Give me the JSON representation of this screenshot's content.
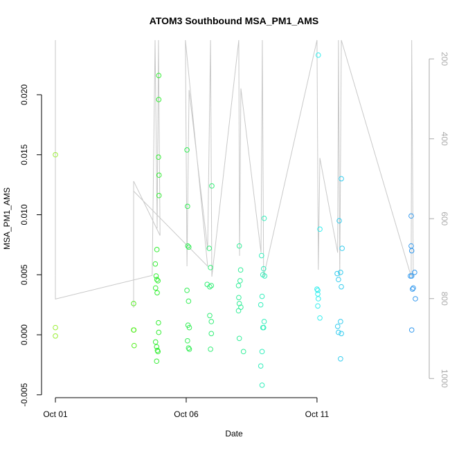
{
  "chart_data": {
    "type": "scatter",
    "title": "ATOM3 Southbound MSA_PM1_AMS",
    "x_label": "Date",
    "y_label": "MSA_PM1_AMS",
    "xlim": [
      -0.53,
      14.29
    ],
    "xticks": [
      {
        "value": 0,
        "label": "Oct 01"
      },
      {
        "value": 5,
        "label": "Oct 06"
      },
      {
        "value": 10,
        "label": "Oct 11"
      }
    ],
    "ylim": [
      -0.00524,
      0.02455
    ],
    "yticks": [
      -0.005,
      {
        "value": 0,
        "label": "0.000"
      },
      0.005,
      {
        "value": 0.01,
        "label": "0.010"
      },
      {
        "value": 0.015,
        "label": "0.015"
      },
      {
        "value": 0.02,
        "label": "0.020"
      }
    ],
    "y2lim": [
      1048,
      153
    ],
    "y2ticks": [
      200,
      400,
      600,
      800,
      1000
    ],
    "series": [
      {
        "color": "#99ee33",
        "x": [
          0,
          0,
          0
        ],
        "values": [
          0.015,
          0.0006,
          -0.0001
        ]
      },
      {
        "color": "#55ee22",
        "x": [
          2.99,
          2.99,
          3.0,
          3.01
        ],
        "values": [
          0.0026,
          0.0004,
          0.0004,
          -0.0009
        ]
      },
      {
        "color": "#33ee33",
        "x": [
          3.95,
          3.95,
          3.94,
          3.96,
          3.96,
          3.88,
          3.82,
          3.85,
          3.88,
          3.92,
          3.83,
          3.89,
          3.94,
          3.95,
          3.83,
          3.87,
          3.9,
          3.92,
          3.87
        ],
        "values": [
          0.0216,
          0.0196,
          0.0148,
          0.0133,
          0.0116,
          0.0071,
          0.0059,
          0.0049,
          0.0046,
          0.0045,
          0.0039,
          0.0035,
          0.001,
          0.0002,
          -0.0006,
          -0.001,
          -0.0013,
          -0.0014,
          -0.0022
        ]
      },
      {
        "color": "#33ee55",
        "x": [
          5.03,
          5.05,
          5.06,
          5.1,
          5.03,
          5.09,
          5.07,
          5.12,
          5.05,
          5.09,
          5.12
        ],
        "values": [
          0.0154,
          0.0107,
          0.0074,
          0.0073,
          0.0037,
          0.0028,
          0.0008,
          0.0006,
          -0.0005,
          -0.0011,
          -0.0012
        ]
      },
      {
        "color": "#33ee77",
        "x": [
          5.98,
          5.88,
          5.93,
          5.8,
          5.9,
          5.96,
          5.9,
          5.96,
          5.96,
          5.93
        ],
        "values": [
          0.0124,
          0.0072,
          0.0056,
          0.0042,
          0.004,
          0.0041,
          0.0016,
          0.0011,
          0.0001,
          -0.0012
        ]
      },
      {
        "color": "#33ee99",
        "x": [
          7.03,
          7.08,
          7.06,
          7.0,
          7.01,
          7.03,
          7.09,
          7.0,
          7.03,
          7.19
        ],
        "values": [
          0.0074,
          0.0054,
          0.0045,
          0.0041,
          0.0031,
          0.0026,
          0.0023,
          0.002,
          -0.0003,
          -0.0014
        ]
      },
      {
        "color": "#33eebb",
        "x": [
          7.98,
          7.88,
          7.96,
          7.93,
          8.0,
          7.9,
          7.85,
          7.98,
          7.93,
          7.96,
          7.9,
          7.85,
          7.9
        ],
        "values": [
          0.0097,
          0.0066,
          0.0055,
          0.005,
          0.0049,
          0.0032,
          0.0025,
          0.0011,
          0.0006,
          0.0006,
          -0.0014,
          -0.0026,
          -0.0042
        ]
      },
      {
        "color": "#33eeee",
        "x": [
          10.05,
          10.11,
          10.0,
          10.03,
          10.03,
          10.05,
          10.03,
          10.11
        ],
        "values": [
          0.0233,
          0.0088,
          0.0038,
          0.0037,
          0.0034,
          0.003,
          0.0024,
          0.0014
        ]
      },
      {
        "color": "#33ccee",
        "x": [
          10.93,
          10.85,
          10.96,
          10.77,
          10.9,
          10.82,
          10.93,
          10.9,
          10.79,
          10.82,
          10.93,
          10.9
        ],
        "values": [
          0.013,
          0.0095,
          0.0072,
          0.0051,
          0.0052,
          0.0046,
          0.004,
          0.0011,
          0.0007,
          0.0002,
          0.0001,
          -0.002
        ]
      },
      {
        "color": "#3399ee",
        "x": [
          13.6,
          13.6,
          13.62,
          13.57,
          13.62,
          13.73,
          13.68,
          13.65,
          13.76,
          13.62
        ],
        "values": [
          0.0099,
          0.0074,
          0.007,
          0.0049,
          0.0049,
          0.0052,
          0.0039,
          0.0038,
          0.003,
          0.0004
        ]
      },
      {
        "color": "#c8c8c8",
        "axis": "y2",
        "line": true,
        "x": [
          0,
          0,
          3.7,
          3.81,
          3.89,
          3.94,
          4.0,
          2.99,
          2.99,
          2.99,
          5.82,
          4.97,
          5.03,
          5.11,
          5.82,
          5.93,
          5.98,
          7.01,
          7.04,
          7.09,
          7.86,
          7.91,
          7.96,
          10.0,
          10.05,
          10.11,
          10.79,
          10.82,
          10.87,
          10.93,
          13.6,
          13.62,
          13.68
        ],
        "values": [
          153,
          801,
          742,
          153,
          624,
          153,
          642,
          506,
          823,
          531,
          719,
          153,
          719,
          278,
          676,
          153,
          745,
          153,
          693,
          274,
          685,
          153,
          745,
          153,
          728,
          448,
          685,
          153,
          745,
          153,
          745,
          153,
          745
        ]
      }
    ]
  }
}
